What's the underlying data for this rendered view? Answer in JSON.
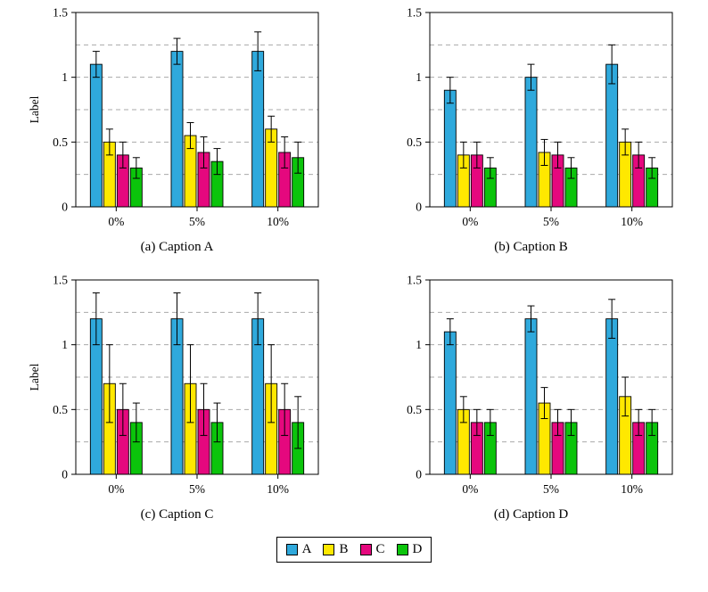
{
  "page": {
    "background": "#ffffff"
  },
  "colors": {
    "axis": "#000000",
    "grid": "#a9a9a9",
    "error_bar": "#000000"
  },
  "legend": {
    "position": "bottom-center",
    "items": [
      {
        "label": "A",
        "color": "#2FA9DC"
      },
      {
        "label": "B",
        "color": "#FFE800"
      },
      {
        "label": "C",
        "color": "#E5087E"
      },
      {
        "label": "D",
        "color": "#0BC40B"
      }
    ]
  },
  "chart_data": [
    {
      "id": "a",
      "type": "bar",
      "caption": "(a) Caption A",
      "ylabel": "Label",
      "xlabel": "",
      "categories": [
        "0%",
        "5%",
        "10%"
      ],
      "ylim": [
        0,
        1.5
      ],
      "yticks": [
        0,
        0.5,
        1,
        1.5
      ],
      "ytick_labels": [
        "0",
        "0.5",
        "1",
        "1.5"
      ],
      "gridlines": [
        0.25,
        0.5,
        0.75,
        1,
        1.25
      ],
      "grid_style": "dashed",
      "series": [
        {
          "name": "A",
          "values": [
            1.1,
            1.2,
            1.2
          ],
          "errors": [
            0.1,
            0.1,
            0.15
          ]
        },
        {
          "name": "B",
          "values": [
            0.5,
            0.55,
            0.6
          ],
          "errors": [
            0.1,
            0.1,
            0.1
          ]
        },
        {
          "name": "C",
          "values": [
            0.4,
            0.42,
            0.42
          ],
          "errors": [
            0.1,
            0.12,
            0.12
          ]
        },
        {
          "name": "D",
          "values": [
            0.3,
            0.35,
            0.38
          ],
          "errors": [
            0.08,
            0.1,
            0.12
          ]
        }
      ]
    },
    {
      "id": "b",
      "type": "bar",
      "caption": "(b) Caption B",
      "ylabel": "",
      "xlabel": "",
      "categories": [
        "0%",
        "5%",
        "10%"
      ],
      "ylim": [
        0,
        1.5
      ],
      "yticks": [
        0,
        0.5,
        1,
        1.5
      ],
      "ytick_labels": [
        "0",
        "0.5",
        "1",
        "1.5"
      ],
      "gridlines": [
        0.25,
        0.5,
        0.75,
        1,
        1.25
      ],
      "grid_style": "dashed",
      "series": [
        {
          "name": "A",
          "values": [
            0.9,
            1.0,
            1.1
          ],
          "errors": [
            0.1,
            0.1,
            0.15
          ]
        },
        {
          "name": "B",
          "values": [
            0.4,
            0.42,
            0.5
          ],
          "errors": [
            0.1,
            0.1,
            0.1
          ]
        },
        {
          "name": "C",
          "values": [
            0.4,
            0.4,
            0.4
          ],
          "errors": [
            0.1,
            0.1,
            0.1
          ]
        },
        {
          "name": "D",
          "values": [
            0.3,
            0.3,
            0.3
          ],
          "errors": [
            0.08,
            0.08,
            0.08
          ]
        }
      ]
    },
    {
      "id": "c",
      "type": "bar",
      "caption": "(c) Caption C",
      "ylabel": "Label",
      "xlabel": "",
      "categories": [
        "0%",
        "5%",
        "10%"
      ],
      "ylim": [
        0,
        1.5
      ],
      "yticks": [
        0,
        0.5,
        1,
        1.5
      ],
      "ytick_labels": [
        "0",
        "0.5",
        "1",
        "1.5"
      ],
      "gridlines": [
        0.25,
        0.5,
        0.75,
        1,
        1.25
      ],
      "grid_style": "dashed",
      "series": [
        {
          "name": "A",
          "values": [
            1.2,
            1.2,
            1.2
          ],
          "errors": [
            0.2,
            0.2,
            0.2
          ]
        },
        {
          "name": "B",
          "values": [
            0.7,
            0.7,
            0.7
          ],
          "errors": [
            0.3,
            0.3,
            0.3
          ]
        },
        {
          "name": "C",
          "values": [
            0.5,
            0.5,
            0.5
          ],
          "errors": [
            0.2,
            0.2,
            0.2
          ]
        },
        {
          "name": "D",
          "values": [
            0.4,
            0.4,
            0.4
          ],
          "errors": [
            0.15,
            0.15,
            0.2
          ]
        }
      ]
    },
    {
      "id": "d",
      "type": "bar",
      "caption": "(d) Caption D",
      "ylabel": "",
      "xlabel": "",
      "categories": [
        "0%",
        "5%",
        "10%"
      ],
      "ylim": [
        0,
        1.5
      ],
      "yticks": [
        0,
        0.5,
        1,
        1.5
      ],
      "ytick_labels": [
        "0",
        "0.5",
        "1",
        "1.5"
      ],
      "gridlines": [
        0.25,
        0.5,
        0.75,
        1,
        1.25
      ],
      "grid_style": "dashed",
      "series": [
        {
          "name": "A",
          "values": [
            1.1,
            1.2,
            1.2
          ],
          "errors": [
            0.1,
            0.1,
            0.15
          ]
        },
        {
          "name": "B",
          "values": [
            0.5,
            0.55,
            0.6
          ],
          "errors": [
            0.1,
            0.12,
            0.15
          ]
        },
        {
          "name": "C",
          "values": [
            0.4,
            0.4,
            0.4
          ],
          "errors": [
            0.1,
            0.1,
            0.1
          ]
        },
        {
          "name": "D",
          "values": [
            0.4,
            0.4,
            0.4
          ],
          "errors": [
            0.1,
            0.1,
            0.1
          ]
        }
      ]
    }
  ]
}
